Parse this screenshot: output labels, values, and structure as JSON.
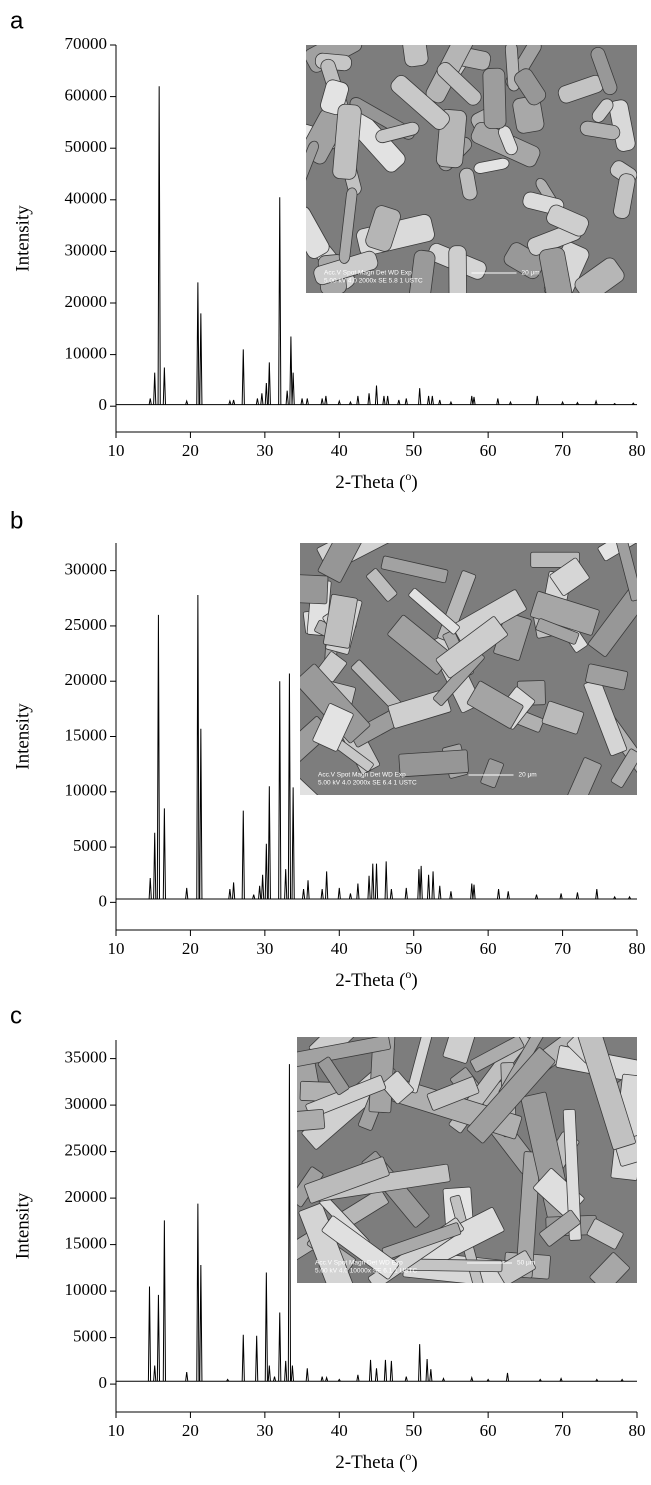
{
  "chart_data": [
    {
      "type": "spectrum",
      "panel": "a",
      "ylabel": "Intensity",
      "xlabel": [
        "2-Theta (",
        "o",
        ")"
      ],
      "xlim": [
        10,
        80
      ],
      "xticks": [
        10,
        20,
        30,
        40,
        50,
        60,
        70,
        80
      ],
      "ylim": [
        -5000,
        70000
      ],
      "yticks": [
        0,
        10000,
        20000,
        30000,
        40000,
        50000,
        60000,
        70000
      ],
      "color": "#000000",
      "baseline": 300,
      "x": [
        14.6,
        15.2,
        15.8,
        16.5,
        19.5,
        21.0,
        21.4,
        25.3,
        25.8,
        27.1,
        29.0,
        29.6,
        30.2,
        30.6,
        32.0,
        33.0,
        33.5,
        33.8,
        35.0,
        35.7,
        37.7,
        38.2,
        40.0,
        41.5,
        42.5,
        44.0,
        45.0,
        46.0,
        46.5,
        48.0,
        49.0,
        50.8,
        52.0,
        52.5,
        53.5,
        55.0,
        57.8,
        58.1,
        61.3,
        63.0,
        66.6,
        70.0,
        72.0,
        74.5,
        77.0,
        79.5
      ],
      "values": [
        1500,
        6500,
        62000,
        7500,
        1000,
        24000,
        18000,
        1000,
        1200,
        11000,
        1500,
        2500,
        4500,
        8500,
        40500,
        3000,
        13500,
        6500,
        1500,
        1500,
        1500,
        2000,
        1000,
        800,
        2000,
        2500,
        4000,
        2000,
        2000,
        1200,
        1500,
        3500,
        2000,
        2000,
        1200,
        800,
        2000,
        1800,
        1500,
        800,
        2000,
        800,
        700,
        1000,
        500,
        600
      ],
      "inset": [
        "Acc.V  Spot Magn   Det  WD  Exp",
        "5.00 kV 4.0  2000x   SE  5.8  1    USTC",
        "20 μm"
      ]
    },
    {
      "type": "spectrum",
      "panel": "b",
      "ylabel": "Intensity",
      "xlabel": [
        "2-Theta (",
        "o",
        ")"
      ],
      "xlim": [
        10,
        80
      ],
      "xticks": [
        10,
        20,
        30,
        40,
        50,
        60,
        70,
        80
      ],
      "ylim": [
        -2500,
        32500
      ],
      "yticks": [
        0,
        5000,
        10000,
        15000,
        20000,
        25000,
        30000
      ],
      "color": "#000000",
      "baseline": 300,
      "x": [
        14.6,
        15.2,
        15.7,
        16.5,
        19.5,
        21.0,
        21.4,
        25.3,
        25.8,
        27.1,
        28.5,
        29.3,
        29.7,
        30.2,
        30.6,
        32.0,
        32.8,
        33.3,
        33.8,
        35.2,
        35.8,
        37.7,
        38.3,
        40.0,
        41.5,
        42.5,
        44.0,
        44.5,
        45.0,
        46.3,
        47.0,
        49.0,
        50.7,
        51.0,
        52.0,
        52.6,
        53.5,
        55.0,
        57.8,
        58.1,
        61.4,
        62.7,
        66.5,
        69.8,
        72.0,
        74.6,
        77.0,
        79.0
      ],
      "values": [
        2200,
        6300,
        26000,
        8500,
        1300,
        27800,
        15700,
        1200,
        1800,
        8300,
        700,
        1500,
        2500,
        5300,
        10500,
        20000,
        3000,
        20700,
        10400,
        1200,
        2000,
        1200,
        2800,
        1300,
        800,
        1700,
        2400,
        3500,
        3500,
        3700,
        1200,
        1300,
        3000,
        3300,
        2500,
        2800,
        1500,
        1000,
        1700,
        1600,
        1200,
        1000,
        700,
        800,
        900,
        1200,
        500,
        500
      ],
      "inset": [
        "Acc.V  Spot Magn   Det  WD  Exp",
        "5.00 kV 4.0  2000x   SE  6.4  1    USTC",
        "20 μm"
      ]
    },
    {
      "type": "spectrum",
      "panel": "c",
      "ylabel": "Intensity",
      "xlabel": [
        "2-Theta (",
        "o",
        ")"
      ],
      "xlim": [
        10,
        80
      ],
      "xticks": [
        10,
        20,
        30,
        40,
        50,
        60,
        70,
        80
      ],
      "ylim": [
        -3000,
        37000
      ],
      "yticks": [
        0,
        5000,
        10000,
        15000,
        20000,
        25000,
        30000,
        35000
      ],
      "color": "#000000",
      "baseline": 300,
      "x": [
        14.5,
        15.2,
        15.7,
        16.5,
        19.5,
        21.0,
        21.4,
        25.0,
        27.1,
        28.9,
        30.2,
        30.6,
        31.3,
        32.0,
        32.8,
        33.3,
        33.7,
        35.7,
        37.7,
        38.3,
        40.0,
        42.5,
        44.2,
        45.0,
        46.2,
        47.0,
        49.0,
        50.8,
        51.8,
        52.3,
        54.0,
        57.8,
        60.0,
        62.6,
        67.0,
        69.8,
        74.6,
        78.0
      ],
      "values": [
        10500,
        2000,
        9600,
        17600,
        1300,
        19400,
        12800,
        500,
        5300,
        5200,
        12000,
        2000,
        800,
        7700,
        2500,
        34400,
        2000,
        1700,
        800,
        700,
        500,
        1000,
        2600,
        1700,
        2600,
        2500,
        800,
        4300,
        2700,
        1600,
        600,
        700,
        500,
        1200,
        500,
        600,
        500,
        500
      ],
      "inset": [
        "Acc.V  Spot Magn   Det  WD  Exp",
        "5.00 kV 4.0  10000x  SE  6.1  1    USTC",
        "50 μm"
      ]
    }
  ]
}
